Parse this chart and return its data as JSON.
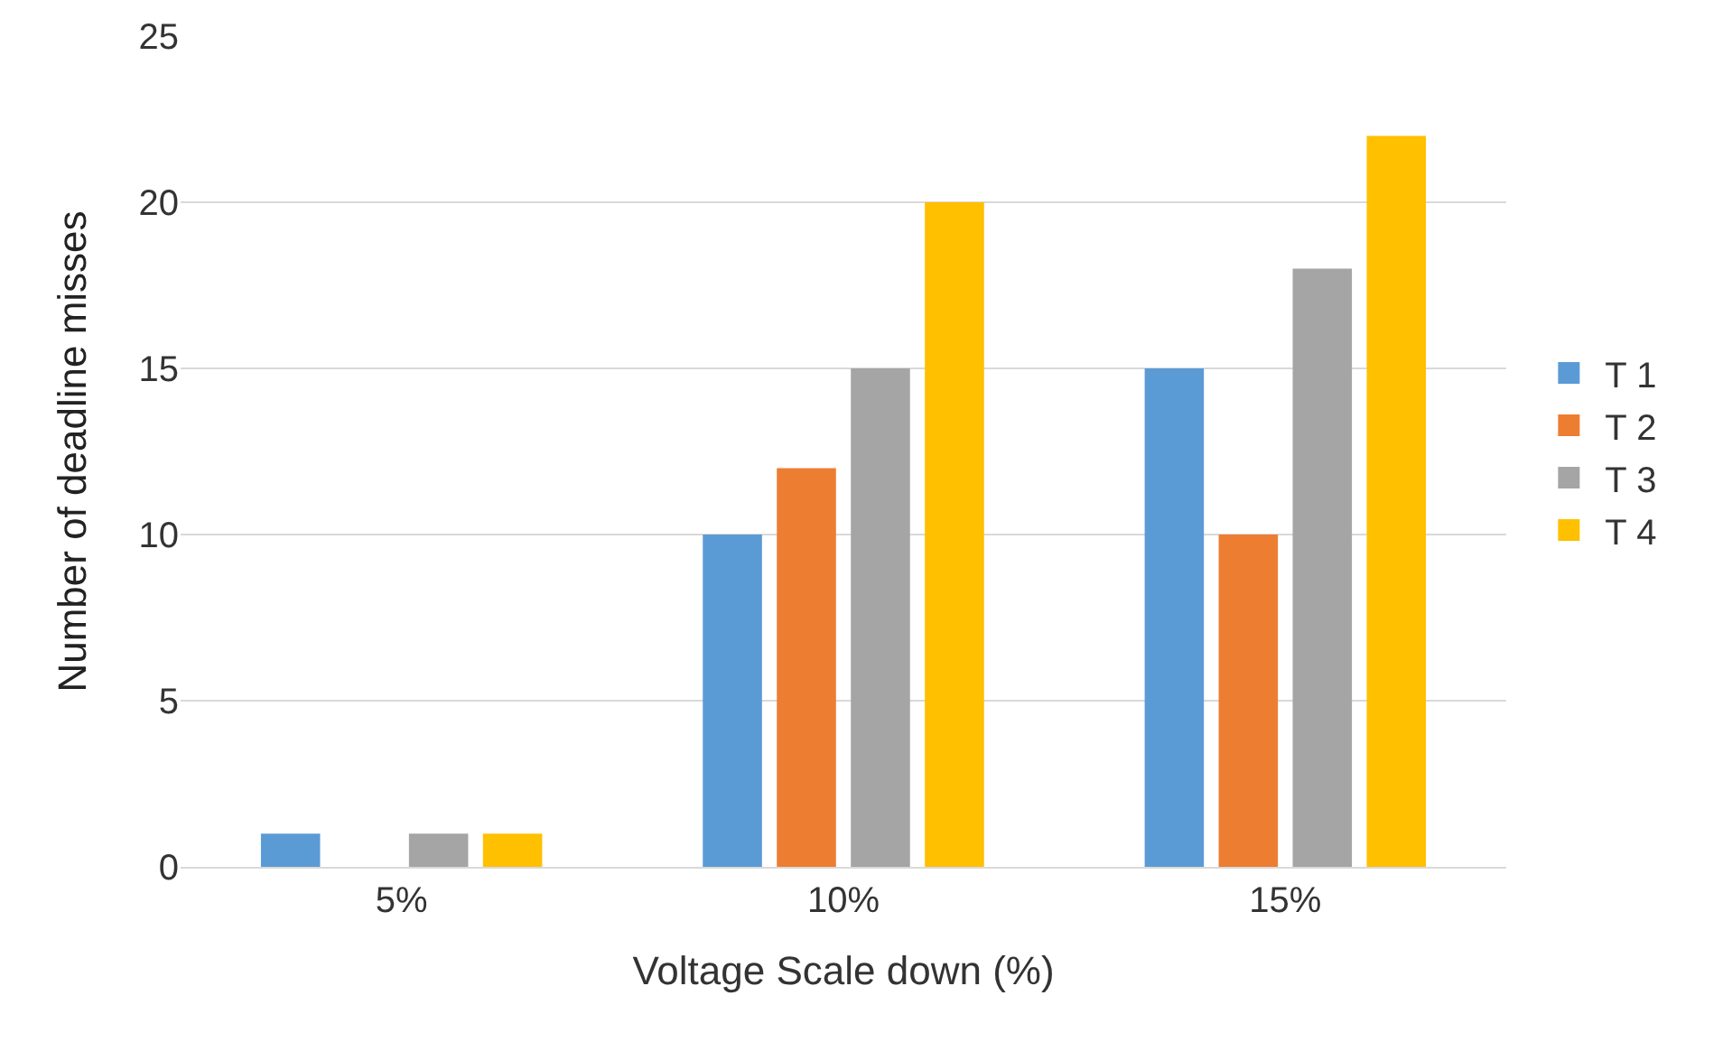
{
  "chart_data": {
    "type": "bar",
    "xlabel": "Voltage Scale down (%)",
    "ylabel": "Number of deadline misses",
    "categories": [
      "5%",
      "10%",
      "15%"
    ],
    "series": [
      {
        "name": "T 1",
        "color": "#5b9bd5",
        "values": [
          1,
          10,
          15
        ]
      },
      {
        "name": "T 2",
        "color": "#ed7d31",
        "values": [
          0,
          12,
          10
        ]
      },
      {
        "name": "T 3",
        "color": "#a5a5a5",
        "values": [
          1,
          15,
          18
        ]
      },
      {
        "name": "T 4",
        "color": "#ffc000",
        "values": [
          1,
          20,
          22
        ]
      }
    ],
    "ylim": [
      0,
      25
    ],
    "yticks": [
      0,
      5,
      10,
      15,
      20,
      25
    ],
    "grid": "y",
    "legend": "right"
  }
}
